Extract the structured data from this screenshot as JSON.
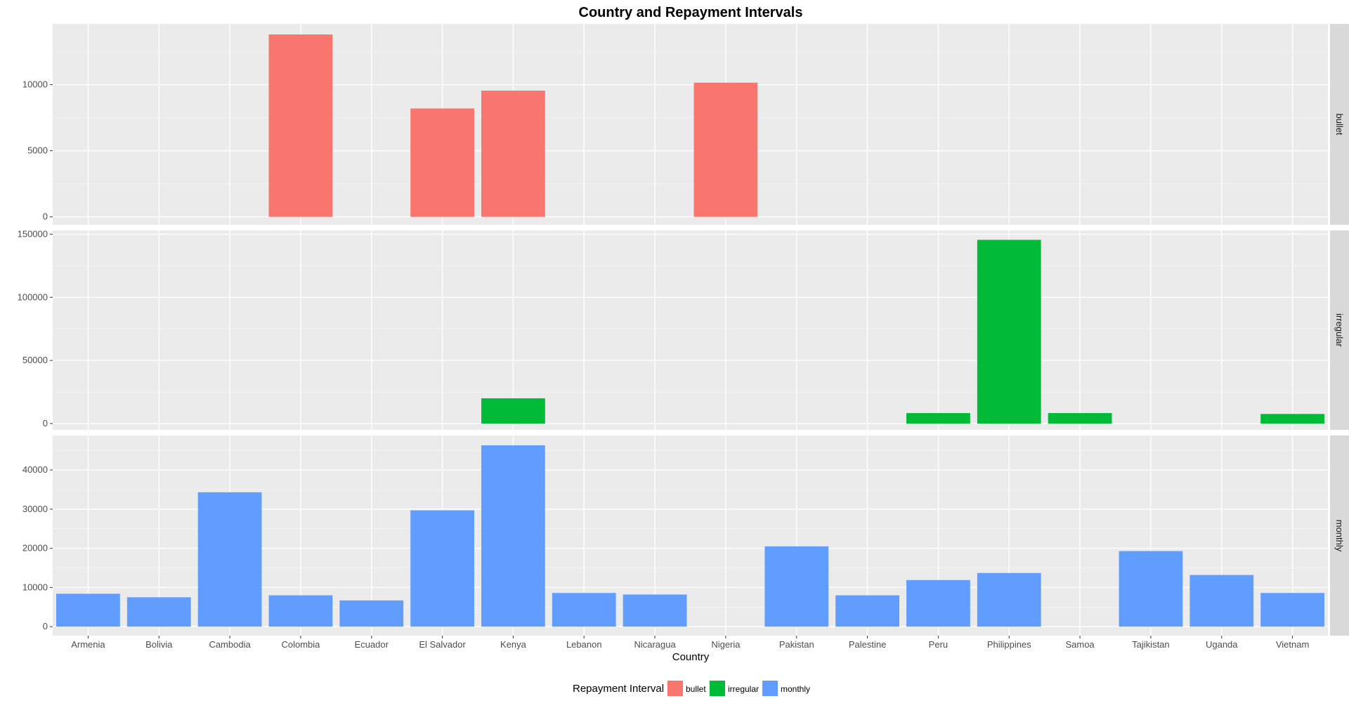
{
  "chart_data": {
    "type": "bar",
    "title": "Country and Repayment Intervals",
    "xlabel": "Country",
    "ylabel": "",
    "legend": {
      "title": "Repayment Interval",
      "position": "bottom",
      "items": [
        {
          "label": "bullet",
          "color": "#F8766D"
        },
        {
          "label": "irregular",
          "color": "#00BA38"
        },
        {
          "label": "monthly",
          "color": "#619CFF"
        }
      ]
    },
    "categories": [
      "Armenia",
      "Bolivia",
      "Cambodia",
      "Colombia",
      "Ecuador",
      "El Salvador",
      "Kenya",
      "Lebanon",
      "Nicaragua",
      "Nigeria",
      "Pakistan",
      "Palestine",
      "Peru",
      "Philippines",
      "Samoa",
      "Tajikistan",
      "Uganda",
      "Vietnam"
    ],
    "grid": true,
    "panel_background": "#EBEBEB",
    "strip_background": "#D9D9D9",
    "facets": [
      {
        "strip": "bullet",
        "color": "#F8766D",
        "ylim": [
          -600,
          14600
        ],
        "yticks": [
          0,
          5000,
          10000
        ],
        "ytick_labels": [
          "0",
          "5000",
          "10000"
        ],
        "values": [
          null,
          null,
          null,
          13800,
          null,
          8200,
          9550,
          null,
          null,
          10150,
          null,
          null,
          null,
          null,
          null,
          null,
          null,
          null
        ]
      },
      {
        "strip": "irregular",
        "color": "#00BA38",
        "ylim": [
          -5000,
          153000
        ],
        "yticks": [
          0,
          50000,
          100000,
          150000
        ],
        "ytick_labels": [
          "0",
          "50000",
          "100000",
          "150000"
        ],
        "values": [
          null,
          null,
          null,
          null,
          null,
          null,
          20000,
          null,
          null,
          null,
          null,
          null,
          8300,
          145500,
          8300,
          null,
          null,
          7600
        ]
      },
      {
        "strip": "monthly",
        "color": "#619CFF",
        "ylim": [
          -2300,
          48800
        ],
        "yticks": [
          0,
          10000,
          20000,
          30000,
          40000
        ],
        "ytick_labels": [
          "0",
          "10000",
          "20000",
          "30000",
          "40000"
        ],
        "values": [
          8400,
          7500,
          34300,
          8000,
          6700,
          29700,
          46300,
          8600,
          8200,
          null,
          20500,
          8000,
          11900,
          13700,
          null,
          19300,
          13200,
          8600
        ]
      }
    ]
  }
}
